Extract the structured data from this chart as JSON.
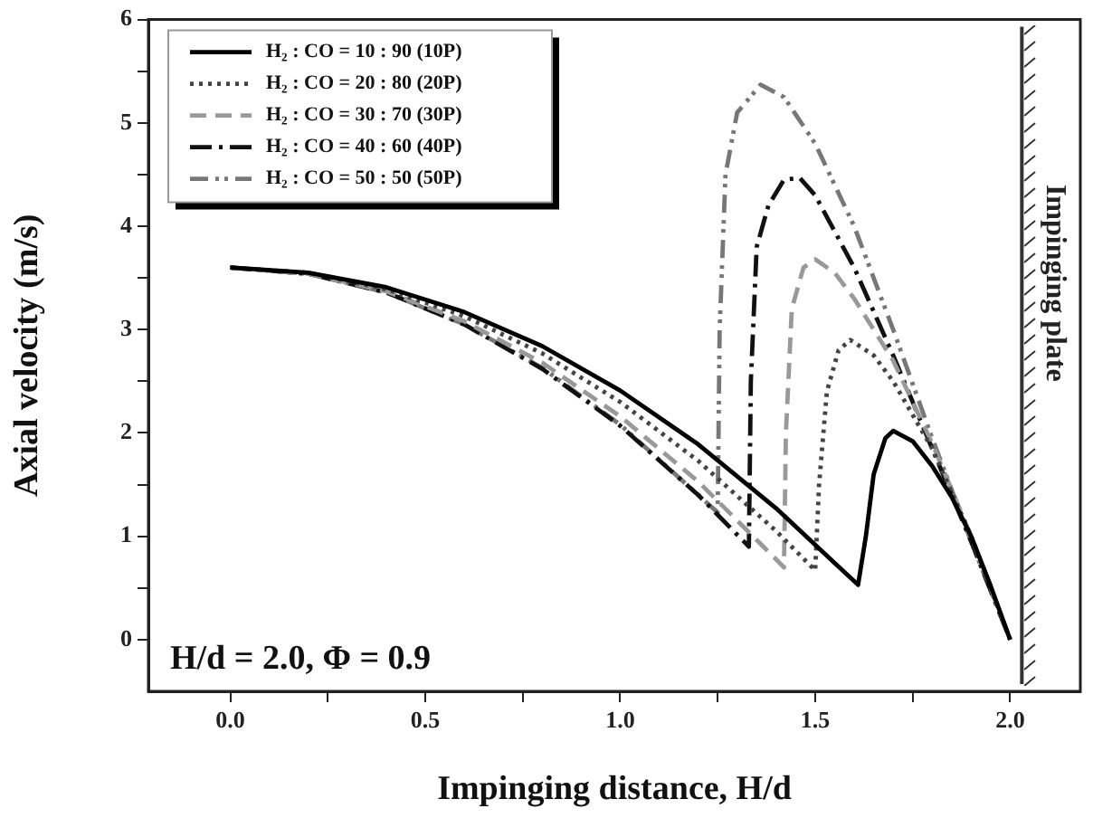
{
  "chart_data": {
    "type": "line",
    "xlabel": "Impinging distance, H/d",
    "ylabel": "Axial velocity (m/s)",
    "xlim": [
      -0.21,
      2.18
    ],
    "ylim": [
      -0.5,
      6
    ],
    "xticks": [
      {
        "value": 0,
        "label": "0.0"
      },
      {
        "value": 0.25,
        "label": null
      },
      {
        "value": 0.5,
        "label": "0.5"
      },
      {
        "value": 0.75,
        "label": null
      },
      {
        "value": 1,
        "label": "1.0"
      },
      {
        "value": 1.25,
        "label": null
      },
      {
        "value": 1.5,
        "label": "1.5"
      },
      {
        "value": 1.75,
        "label": null
      },
      {
        "value": 2,
        "label": "2.0"
      }
    ],
    "yticks": [
      0,
      {
        "value": 0.5,
        "label": null
      },
      1,
      {
        "value": 1.5,
        "label": null
      },
      2,
      {
        "value": 2.5,
        "label": null
      },
      3,
      {
        "value": 3.5,
        "label": null
      },
      4,
      {
        "value": 4.5,
        "label": null
      },
      5,
      {
        "value": 5.5,
        "label": null
      },
      6
    ],
    "grid": false,
    "legend": "top left",
    "marker": "none",
    "series": [
      {
        "name": "H₂ : CO = 10 : 90 (10P)",
        "color": "#000000",
        "line_style": "solid",
        "x": [
          0,
          0.2,
          0.4,
          0.6,
          0.8,
          1.0,
          1.2,
          1.4,
          1.55,
          1.61,
          1.63,
          1.65,
          1.68,
          1.7,
          1.75,
          1.8,
          1.85,
          1.9,
          1.95,
          2.0
        ],
        "values": [
          3.6,
          3.55,
          3.41,
          3.17,
          2.84,
          2.41,
          1.89,
          1.27,
          0.74,
          0.53,
          1.0,
          1.6,
          1.95,
          2.02,
          1.92,
          1.68,
          1.38,
          1.0,
          0.52,
          0
        ]
      },
      {
        "name": "H₂ : CO = 20 : 80 (20P)",
        "color": "#444444",
        "line_style": "dotted",
        "x": [
          0,
          0.2,
          0.4,
          0.6,
          0.8,
          1.0,
          1.2,
          1.4,
          1.5,
          1.51,
          1.53,
          1.56,
          1.59,
          1.65,
          1.7,
          1.8,
          1.9,
          1.95,
          2.0
        ],
        "values": [
          3.6,
          3.55,
          3.39,
          3.13,
          2.77,
          2.3,
          1.73,
          1.05,
          0.67,
          1.5,
          2.4,
          2.8,
          2.9,
          2.75,
          2.5,
          1.85,
          1.0,
          0.5,
          0
        ]
      },
      {
        "name": "H₂ : CO = 30 : 70 (30P)",
        "color": "#999999",
        "line_style": "dashed",
        "x": [
          0,
          0.2,
          0.4,
          0.6,
          0.8,
          1.0,
          1.2,
          1.42,
          1.425,
          1.44,
          1.47,
          1.5,
          1.55,
          1.6,
          1.7,
          1.8,
          1.9,
          2.0
        ],
        "values": [
          3.6,
          3.54,
          3.37,
          3.08,
          2.68,
          2.16,
          1.53,
          0.7,
          2.0,
          3.2,
          3.6,
          3.68,
          3.55,
          3.3,
          2.7,
          1.9,
          1.0,
          0
        ]
      },
      {
        "name": "H₂ : CO = 40 : 60 (40P)",
        "color": "#111111",
        "line_style": "dashed",
        "x": [
          0,
          0.2,
          0.4,
          0.6,
          0.8,
          1.0,
          1.2,
          1.33,
          1.335,
          1.35,
          1.38,
          1.42,
          1.46,
          1.5,
          1.6,
          1.7,
          1.8,
          1.9,
          2.0
        ],
        "values": [
          3.6,
          3.54,
          3.36,
          3.05,
          2.62,
          2.07,
          1.4,
          0.9,
          2.5,
          3.8,
          4.2,
          4.45,
          4.47,
          4.3,
          3.6,
          2.75,
          1.85,
          0.95,
          0
        ]
      },
      {
        "name": "H₂ : CO = 50 : 50 (50P)",
        "color": "#777777",
        "line_style": "dashed",
        "x": [
          0,
          0.2,
          0.4,
          0.6,
          0.8,
          1.0,
          1.25,
          1.255,
          1.27,
          1.3,
          1.36,
          1.42,
          1.5,
          1.6,
          1.7,
          1.8,
          1.9,
          2.0
        ],
        "values": [
          3.6,
          3.54,
          3.36,
          3.05,
          2.63,
          2.08,
          1.23,
          3.0,
          4.5,
          5.1,
          5.37,
          5.25,
          4.8,
          4.0,
          3.0,
          1.95,
          0.95,
          0
        ]
      }
    ],
    "ref_lines": [
      {
        "axis": "x",
        "value": 2.03,
        "label": "Impinging plate",
        "color": "#333333"
      }
    ],
    "annotations": [
      "H/d = 2.0, Φ = 0.9"
    ]
  }
}
